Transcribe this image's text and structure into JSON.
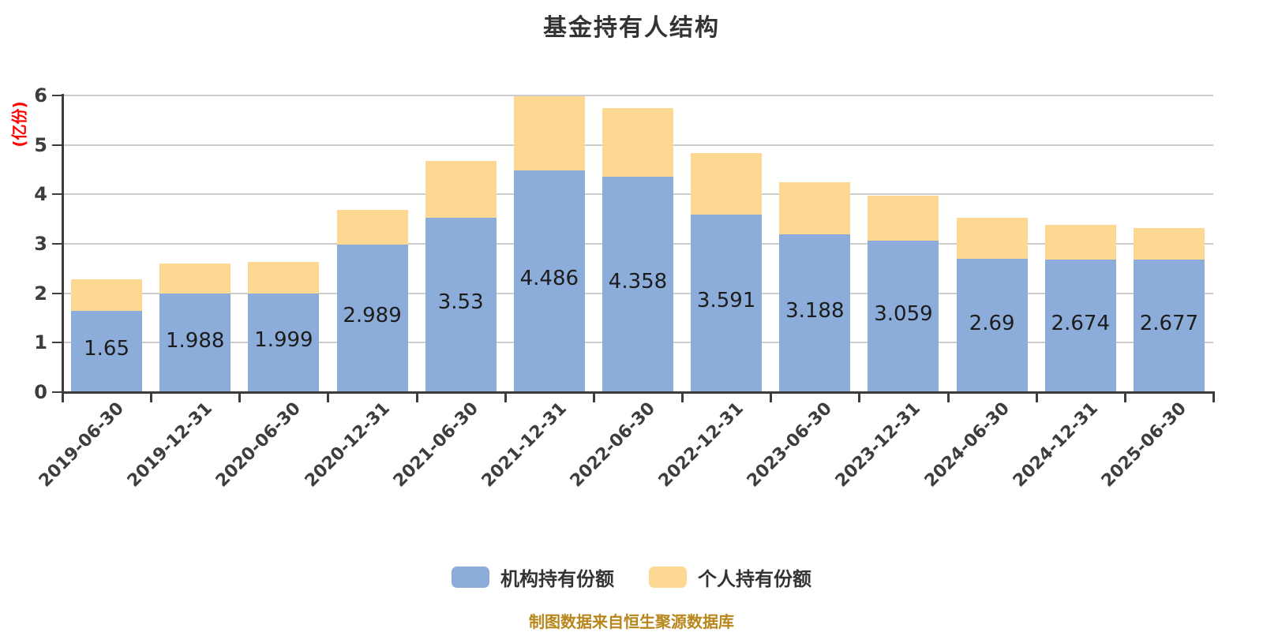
{
  "title": "基金持有人结构",
  "y_axis_unit": "(亿份)",
  "footer": "制图数据来自恒生聚源数据库",
  "legend": [
    {
      "label": "机构持有份额",
      "color": "#8cacd9"
    },
    {
      "label": "个人持有份额",
      "color": "#fcd893"
    }
  ],
  "colors": {
    "institutional_bar": "#8cacd9",
    "personal_bar": "#fcd893",
    "gridline": "#cccccc",
    "axis": "#3c3c3c",
    "tick_text": "#3d3d3d",
    "value_label": "#1c1c1c",
    "title_text": "#333333",
    "y_unit_text": "#ff0000",
    "footer_text": "#b8861b"
  },
  "chart_data": {
    "type": "bar",
    "stacked": true,
    "title": "基金持有人结构",
    "ylabel": "(亿份)",
    "ylim": [
      0,
      6
    ],
    "y_ticks": [
      "0",
      "1",
      "2",
      "3",
      "4",
      "5",
      "6"
    ],
    "grid": true,
    "legend_position": "bottom",
    "categories": [
      "2019-06-30",
      "2019-12-31",
      "2020-06-30",
      "2020-12-31",
      "2021-06-30",
      "2021-12-31",
      "2022-06-30",
      "2022-12-31",
      "2023-06-30",
      "2023-12-31",
      "2024-06-30",
      "2024-12-31",
      "2025-06-30"
    ],
    "series": [
      {
        "name": "机构持有份额",
        "color": "#8cacd9",
        "values": [
          1.65,
          1.988,
          1.999,
          2.989,
          3.53,
          4.486,
          4.358,
          3.591,
          3.188,
          3.059,
          2.69,
          2.674,
          2.677
        ],
        "value_labels": [
          "1.65",
          "1.988",
          "1.999",
          "2.989",
          "3.53",
          "4.486",
          "4.358",
          "3.591",
          "3.188",
          "3.059",
          "2.69",
          "2.674",
          "2.677"
        ]
      },
      {
        "name": "个人持有份额",
        "color": "#fcd893",
        "values": [
          0.63,
          0.61,
          0.63,
          0.7,
          1.14,
          1.5,
          1.39,
          1.24,
          1.06,
          0.91,
          0.84,
          0.71,
          0.64
        ],
        "value_labels": null
      }
    ]
  }
}
